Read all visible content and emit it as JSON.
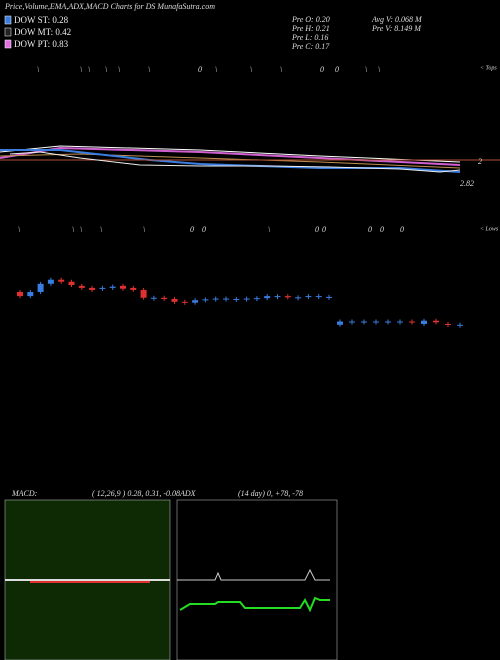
{
  "header": {
    "title": "Price,Volume,EMA,ADX,MACD Charts for DS MunafaSutra.com"
  },
  "legend": [
    {
      "label": "DOW ST: 0.28",
      "color": "#3a7de0"
    },
    {
      "label": "DOW MT: 0.42",
      "color": "#222222"
    },
    {
      "label": "DOW PT: 0.83",
      "color": "#e070e0"
    }
  ],
  "stats": {
    "left": [
      "Pre  O: 0.20",
      "Pre  H: 0.21",
      "Pre  L: 0.16",
      "Pre  C: 0.17"
    ],
    "right": [
      "Avg V: 0.068  M",
      "Pre  V: 8.149 M"
    ]
  },
  "price_labels": [
    "2",
    "2.82"
  ],
  "tops": {
    "label": "< Tops",
    "marks": [
      "\\",
      "\\",
      "\\",
      "\\",
      "\\",
      "\\",
      "0",
      "\\",
      "\\",
      "\\",
      "0",
      "0",
      "\\",
      "\\"
    ]
  },
  "lows": {
    "label": "< Lows",
    "marks": [
      "\\",
      "\\",
      "\\",
      "\\",
      "\\",
      "0",
      "0",
      "\\",
      "0",
      "0",
      "0",
      "0",
      "0"
    ]
  },
  "chart_data": {
    "type": "candlestick",
    "ylim": [
      0.05,
      0.35
    ],
    "up_color": "#3a7de0",
    "down_color": "#e03030",
    "open": [
      0.25,
      0.24,
      0.25,
      0.27,
      0.28,
      0.275,
      0.265,
      0.26,
      0.258,
      0.26,
      0.265,
      0.26,
      0.255,
      0.236,
      0.236,
      0.233,
      0.226,
      0.224,
      0.23,
      0.232,
      0.234,
      0.233,
      0.233,
      0.234,
      0.235,
      0.24,
      0.24,
      0.237,
      0.24,
      0.24,
      0.238,
      0.17,
      0.178,
      0.178,
      0.178,
      0.178,
      0.178,
      0.178,
      0.172,
      0.18,
      0.172,
      0.17
    ],
    "close": [
      0.24,
      0.25,
      0.27,
      0.28,
      0.275,
      0.267,
      0.26,
      0.255,
      0.26,
      0.263,
      0.258,
      0.255,
      0.236,
      0.236,
      0.233,
      0.226,
      0.224,
      0.23,
      0.232,
      0.234,
      0.234,
      0.233,
      0.234,
      0.235,
      0.24,
      0.24,
      0.237,
      0.237,
      0.24,
      0.24,
      0.238,
      0.178,
      0.178,
      0.178,
      0.178,
      0.178,
      0.178,
      0.176,
      0.18,
      0.176,
      0.17,
      0.17
    ]
  },
  "macd": {
    "label": "MACD:",
    "params": "( 12,26,9 ) 0.28, 0.31, -0.08"
  },
  "adx": {
    "label": "ADX",
    "params": "(14  day) 0, +78, -78"
  }
}
